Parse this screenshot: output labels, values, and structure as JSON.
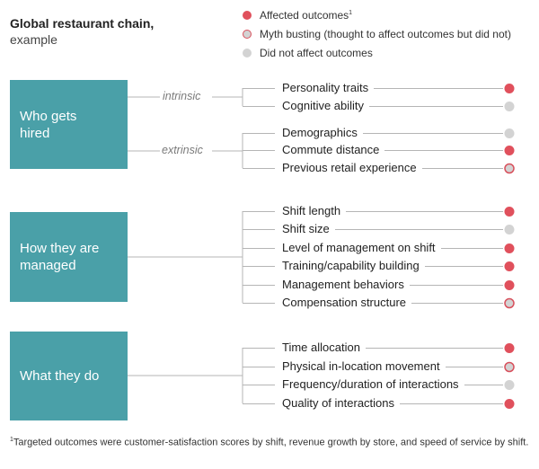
{
  "title": {
    "line1": "Global restaurant chain,",
    "line2": "example"
  },
  "colors": {
    "affected": "#e0505c",
    "myth_fill": "#d3d3d3",
    "myth_border": "#d8505c",
    "none": "#d3d3d3",
    "block": "#4aa0a8",
    "line": "#b5b5b5"
  },
  "legend": [
    {
      "status": "affected",
      "label": "Affected outcomes",
      "sup": "1"
    },
    {
      "status": "myth",
      "label": "Myth busting (thought to affect outcomes but did not)",
      "sup": ""
    },
    {
      "status": "none",
      "label": "Did not affect outcomes",
      "sup": ""
    }
  ],
  "groups": [
    {
      "label_lines": [
        "Who gets",
        "hired"
      ],
      "subgroups": [
        {
          "label": "intrinsic",
          "items": [
            {
              "label": "Personality traits",
              "status": "affected"
            },
            {
              "label": "Cognitive ability",
              "status": "none"
            }
          ]
        },
        {
          "label": "extrinsic",
          "items": [
            {
              "label": "Demographics",
              "status": "none"
            },
            {
              "label": "Commute distance",
              "status": "affected"
            },
            {
              "label": "Previous retail experience",
              "status": "myth"
            }
          ]
        }
      ]
    },
    {
      "label_lines": [
        "How they are",
        "managed"
      ],
      "subgroups": [
        {
          "label": "",
          "items": [
            {
              "label": "Shift length",
              "status": "affected"
            },
            {
              "label": "Shift size",
              "status": "none"
            },
            {
              "label": "Level of management on shift",
              "status": "affected"
            },
            {
              "label": "Training/capability building",
              "status": "affected"
            },
            {
              "label": "Management behaviors",
              "status": "affected"
            },
            {
              "label": "Compensation structure",
              "status": "myth"
            }
          ]
        }
      ]
    },
    {
      "label_lines": [
        "What they do"
      ],
      "subgroups": [
        {
          "label": "",
          "items": [
            {
              "label": "Time allocation",
              "status": "affected"
            },
            {
              "label": "Physical in-location movement",
              "status": "myth"
            },
            {
              "label": "Frequency/duration of interactions",
              "status": "none"
            },
            {
              "label": "Quality of interactions",
              "status": "affected"
            }
          ]
        }
      ]
    }
  ],
  "footnote": {
    "sup": "1",
    "text": "Targeted outcomes were customer-satisfaction scores by shift, revenue growth by store, and speed of service by shift."
  }
}
